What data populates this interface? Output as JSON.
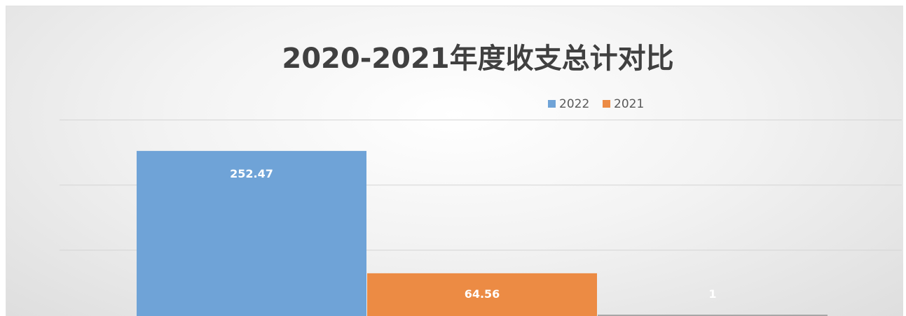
{
  "chart_data": {
    "type": "bar",
    "title": "2020-2021年度收支总计对比",
    "categories": [
      "",
      "",
      ""
    ],
    "series": [
      {
        "name": "2022",
        "color": "#6fa3d7"
      },
      {
        "name": "2021",
        "color": "#ec8b44"
      }
    ],
    "bars": [
      {
        "value": 252.47,
        "label": "252.47",
        "color": "#6fa3d7"
      },
      {
        "value": 64.56,
        "label": "64.56",
        "color": "#ec8b44"
      },
      {
        "value": 1,
        "label": "1",
        "color": "#a5a5a5"
      }
    ],
    "ylim": [
      0,
      300
    ],
    "grid": true,
    "legend_position": "top-right"
  }
}
